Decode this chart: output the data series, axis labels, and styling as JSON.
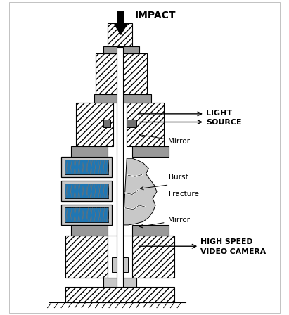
{
  "bg_color": "#ffffff",
  "labels": {
    "impact": "IMPACT",
    "light_source_1": "LIGHT",
    "light_source_2": "SOURCE",
    "mirror_top": "Mirror",
    "burst_fracture_1": "Burst",
    "burst_fracture_2": "Fracture",
    "mirror_bottom": "Mirror",
    "high_speed_1": "HIGH SPEED",
    "high_speed_2": "VIDEO CAMERA"
  },
  "gray_light": "#c8c8c8",
  "gray_medium": "#999999",
  "gray_dark": "#707070",
  "white": "#ffffff",
  "black": "#000000",
  "hatch": "////"
}
